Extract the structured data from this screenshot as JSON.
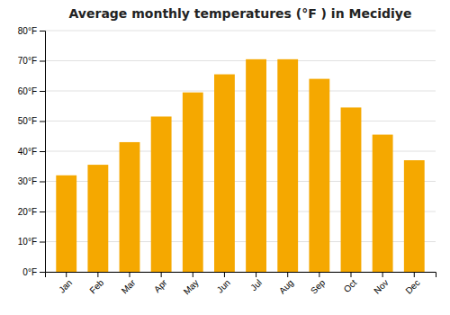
{
  "chart_data": {
    "type": "bar",
    "title": "Average monthly temperatures (°F ) in Mecidiye",
    "categories": [
      "Jan",
      "Feb",
      "Mar",
      "Apr",
      "May",
      "Jun",
      "Jul",
      "Aug",
      "Sep",
      "Oct",
      "Nov",
      "Dec"
    ],
    "values": [
      32,
      35.5,
      43,
      51.5,
      59.5,
      65.5,
      70.5,
      70.5,
      64,
      54.5,
      45.5,
      37
    ],
    "color": "#F5A800",
    "ylim": [
      0,
      80
    ],
    "yticks": [
      {
        "value": 0,
        "label": "0°F"
      },
      {
        "value": 10,
        "label": "10°F"
      },
      {
        "value": 20,
        "label": "20°F"
      },
      {
        "value": 30,
        "label": "30°F"
      },
      {
        "value": 40,
        "label": "40°F"
      },
      {
        "value": 50,
        "label": "50°F"
      },
      {
        "value": 60,
        "label": "60°F"
      },
      {
        "value": 70,
        "label": "70°F"
      },
      {
        "value": 80,
        "label": "80°F"
      }
    ],
    "grid": true
  }
}
